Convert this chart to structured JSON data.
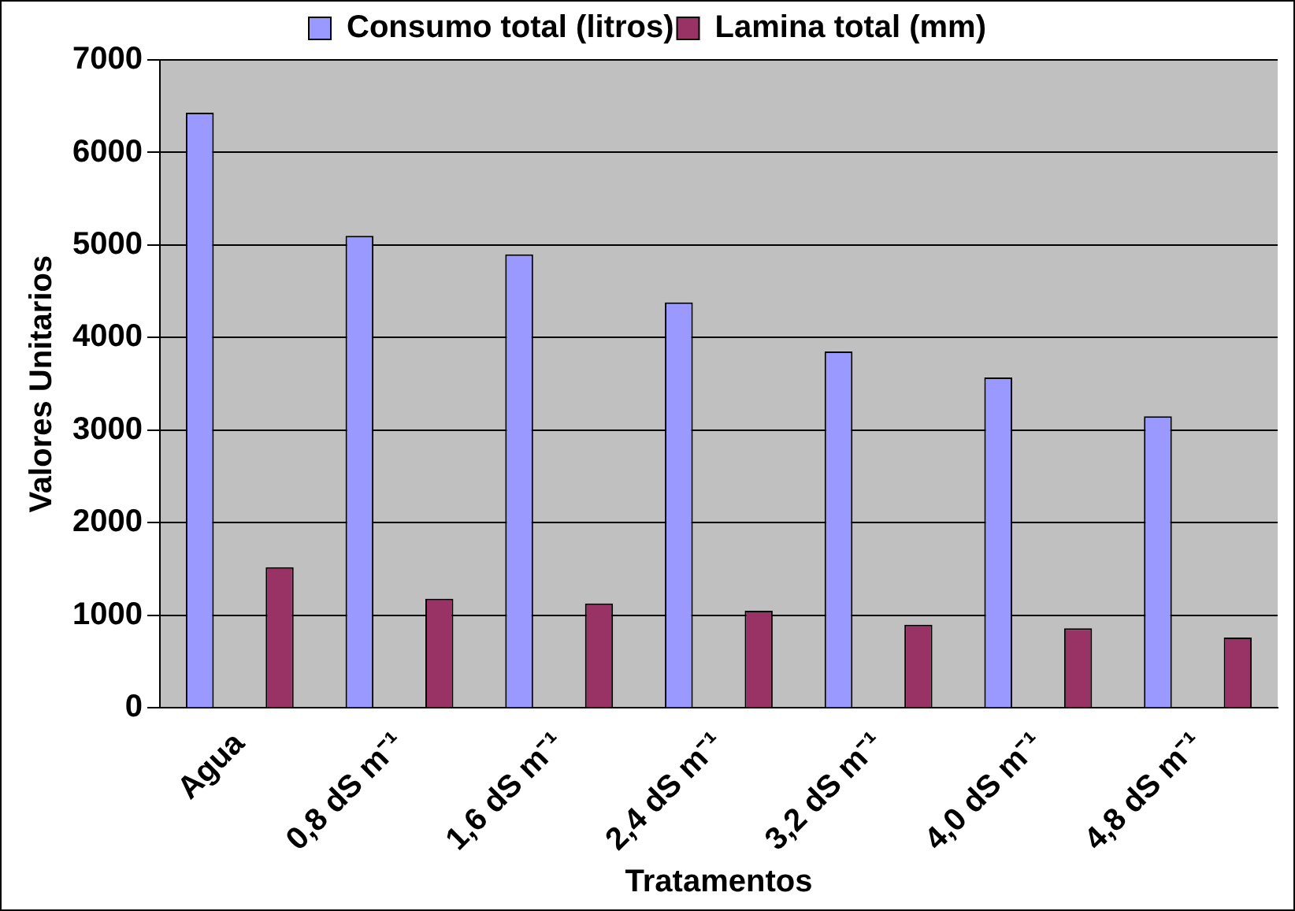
{
  "chart_data": {
    "type": "bar",
    "xlabel": "Tratamentos",
    "ylabel": "Valores Unitarios",
    "categories": [
      "Agua",
      "0,8 dS m⁻¹",
      "1,6 dS m⁻¹",
      "2,4 dS m⁻¹",
      "3,2 dS m⁻¹",
      "4,0 dS m⁻¹",
      "4,8 dS m⁻¹"
    ],
    "series": [
      {
        "name": "Consumo total (litros)",
        "color": "#9999ff",
        "values": [
          6430,
          5100,
          4900,
          4380,
          3850,
          3570,
          3150
        ]
      },
      {
        "name": "Lamina total (mm)",
        "color": "#993366",
        "values": [
          1520,
          1180,
          1130,
          1050,
          900,
          860,
          760
        ]
      }
    ],
    "ylim": [
      0,
      7000
    ],
    "yticks": [
      0,
      1000,
      2000,
      3000,
      4000,
      5000,
      6000,
      7000
    ],
    "grid": "y",
    "legend": "top"
  }
}
